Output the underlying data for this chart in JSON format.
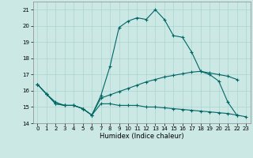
{
  "title": "",
  "xlabel": "Humidex (Indice chaleur)",
  "background_color": "#cce8e4",
  "grid_color": "#aad4d0",
  "line_color": "#006666",
  "xlim": [
    -0.5,
    23.5
  ],
  "ylim": [
    14,
    21.5
  ],
  "yticks": [
    14,
    15,
    16,
    17,
    18,
    19,
    20,
    21
  ],
  "xticks": [
    0,
    1,
    2,
    3,
    4,
    5,
    6,
    7,
    8,
    9,
    10,
    11,
    12,
    13,
    14,
    15,
    16,
    17,
    18,
    19,
    20,
    21,
    22,
    23
  ],
  "series1_x": [
    0,
    1,
    2,
    3,
    4,
    5,
    6,
    7,
    8,
    9,
    10,
    11,
    12,
    13,
    14,
    15,
    16,
    17,
    18,
    19,
    20,
    21,
    22
  ],
  "series1_y": [
    16.4,
    15.8,
    15.2,
    15.1,
    15.1,
    14.9,
    14.5,
    15.7,
    17.5,
    19.9,
    20.3,
    20.5,
    20.4,
    21.0,
    20.4,
    19.4,
    19.3,
    18.4,
    17.2,
    17.0,
    16.6,
    15.3,
    14.5
  ],
  "series2_x": [
    0,
    1,
    2,
    3,
    4,
    5,
    6,
    7,
    8,
    9,
    10,
    11,
    12,
    13,
    14,
    15,
    16,
    17,
    18,
    19,
    20,
    21,
    22
  ],
  "series2_y": [
    16.4,
    15.8,
    15.2,
    15.1,
    15.1,
    14.9,
    14.5,
    15.55,
    15.75,
    15.95,
    16.15,
    16.35,
    16.55,
    16.7,
    16.85,
    16.95,
    17.05,
    17.15,
    17.2,
    17.1,
    17.0,
    16.9,
    16.7
  ],
  "series3_x": [
    0,
    1,
    2,
    3,
    4,
    5,
    6,
    7,
    8,
    9,
    10,
    11,
    12,
    13,
    14,
    15,
    16,
    17,
    18,
    19,
    20,
    21,
    22,
    23
  ],
  "series3_y": [
    16.4,
    15.8,
    15.3,
    15.1,
    15.1,
    14.9,
    14.5,
    15.2,
    15.2,
    15.1,
    15.1,
    15.1,
    15.0,
    15.0,
    14.95,
    14.9,
    14.85,
    14.8,
    14.75,
    14.7,
    14.65,
    14.6,
    14.5,
    14.4
  ]
}
